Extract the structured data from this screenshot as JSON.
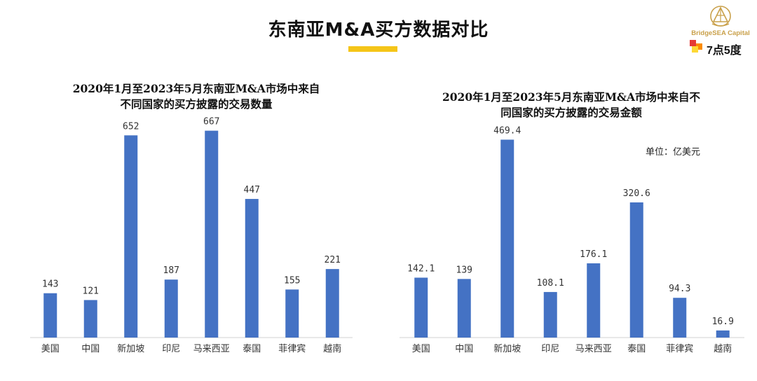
{
  "page": {
    "title": "东南亚M&A买方数据对比",
    "accent_color": "#F5C518",
    "brand_primary": "BridgeSEA Capital",
    "brand_secondary": "7点5度",
    "brand_gold": "#C9A04A"
  },
  "chart_data": [
    {
      "type": "bar",
      "title": "2020年1月至2023年5月东南亚M&A市场中来自不同国家的买方披露的交易数量",
      "title_lines": [
        "2020年1月至2023年5月东南亚M&A市场中来自",
        "不同国家的买方披露的交易数量"
      ],
      "categories": [
        "美国",
        "中国",
        "新加坡",
        "印尼",
        "马来西亚",
        "泰国",
        "菲律宾",
        "越南"
      ],
      "values": [
        143,
        121,
        652,
        187,
        667,
        447,
        155,
        221
      ],
      "value_labels": [
        "143",
        "121",
        "652",
        "187",
        "667",
        "447",
        "155",
        "221"
      ],
      "unit": "",
      "ylim": [
        0,
        700
      ],
      "bar_color": "#4472C4",
      "grid": false,
      "legend": "none"
    },
    {
      "type": "bar",
      "title": "2020年1月至2023年5月东南亚M&A市场中来自不同国家的买方披露的交易金额",
      "title_lines": [
        "2020年1月至2023年5月东南亚M&A市场中来自不",
        "同国家的买方披露的交易金额"
      ],
      "categories": [
        "美国",
        "中国",
        "新加坡",
        "印尼",
        "马来西亚",
        "泰国",
        "菲律宾",
        "越南"
      ],
      "values": [
        142.1,
        139,
        469.4,
        108.1,
        176.1,
        320.6,
        94.3,
        16.9
      ],
      "value_labels": [
        "142.1",
        "139",
        "469.4",
        "108.1",
        "176.1",
        "320.6",
        "94.3",
        "16.9"
      ],
      "unit": "单位：亿美元",
      "ylim": [
        0,
        500
      ],
      "bar_color": "#4472C4",
      "grid": false,
      "legend": "none"
    }
  ]
}
